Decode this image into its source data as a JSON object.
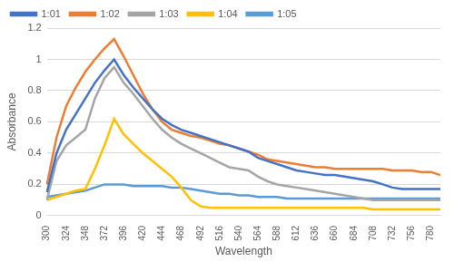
{
  "chart_data": {
    "type": "line",
    "x_label": "Wavelength",
    "y_label": "Absorbance",
    "categories": [
      300,
      null,
      324,
      null,
      348,
      null,
      372,
      null,
      396,
      null,
      420,
      null,
      444,
      null,
      468,
      null,
      492,
      null,
      516,
      null,
      540,
      null,
      564,
      null,
      588,
      null,
      612,
      null,
      636,
      null,
      660,
      null,
      684,
      null,
      708,
      null,
      732,
      null,
      756,
      null,
      780,
      null
    ],
    "series": [
      {
        "name": "1:01",
        "color": "#4472c4",
        "values": [
          0.15,
          0.4,
          0.55,
          0.65,
          0.75,
          0.85,
          0.93,
          1.0,
          0.9,
          0.82,
          0.75,
          0.68,
          0.62,
          0.58,
          0.55,
          0.53,
          0.51,
          0.49,
          0.47,
          0.45,
          0.43,
          0.41,
          0.37,
          0.35,
          0.33,
          0.31,
          0.29,
          0.28,
          0.27,
          0.26,
          0.26,
          0.25,
          0.24,
          0.23,
          0.22,
          0.2,
          0.18,
          0.17,
          0.17,
          0.17,
          0.17,
          0.17
        ]
      },
      {
        "name": "1:02",
        "color": "#ed7d31",
        "values": [
          0.2,
          0.5,
          0.7,
          0.82,
          0.92,
          1.0,
          1.07,
          1.13,
          1.02,
          0.9,
          0.78,
          0.68,
          0.6,
          0.55,
          0.53,
          0.51,
          0.5,
          0.48,
          0.46,
          0.45,
          0.43,
          0.41,
          0.39,
          0.36,
          0.35,
          0.34,
          0.33,
          0.32,
          0.31,
          0.31,
          0.3,
          0.3,
          0.3,
          0.3,
          0.3,
          0.3,
          0.29,
          0.29,
          0.29,
          0.28,
          0.28,
          0.26
        ]
      },
      {
        "name": "1:03",
        "color": "#a5a5a5",
        "values": [
          0.1,
          0.35,
          0.45,
          0.5,
          0.55,
          0.75,
          0.88,
          0.95,
          0.85,
          0.78,
          0.7,
          0.62,
          0.55,
          0.5,
          0.46,
          0.43,
          0.4,
          0.37,
          0.34,
          0.31,
          0.3,
          0.29,
          0.25,
          0.22,
          0.2,
          0.19,
          0.18,
          0.17,
          0.16,
          0.15,
          0.14,
          0.13,
          0.12,
          0.11,
          0.1,
          0.1,
          0.1,
          0.1,
          0.1,
          0.1,
          0.1,
          0.1
        ]
      },
      {
        "name": "1:04",
        "color": "#ffc000",
        "values": [
          0.1,
          0.12,
          0.14,
          0.16,
          0.17,
          0.3,
          0.45,
          0.62,
          0.52,
          0.46,
          0.4,
          0.35,
          0.3,
          0.25,
          0.18,
          0.1,
          0.06,
          0.05,
          0.05,
          0.05,
          0.05,
          0.05,
          0.05,
          0.05,
          0.05,
          0.05,
          0.05,
          0.05,
          0.05,
          0.05,
          0.05,
          0.05,
          0.05,
          0.05,
          0.04,
          0.04,
          0.04,
          0.04,
          0.04,
          0.04,
          0.04,
          0.04
        ]
      },
      {
        "name": "1:05",
        "color": "#5b9bd5",
        "values": [
          0.12,
          0.13,
          0.14,
          0.15,
          0.16,
          0.18,
          0.2,
          0.2,
          0.2,
          0.19,
          0.19,
          0.19,
          0.19,
          0.18,
          0.18,
          0.17,
          0.16,
          0.15,
          0.14,
          0.14,
          0.13,
          0.13,
          0.12,
          0.12,
          0.12,
          0.11,
          0.11,
          0.11,
          0.11,
          0.11,
          0.11,
          0.11,
          0.11,
          0.11,
          0.11,
          0.11,
          0.11,
          0.11,
          0.11,
          0.11,
          0.11,
          0.11
        ]
      }
    ],
    "ylim": [
      0,
      1.2
    ],
    "yticks": [
      0,
      0.2,
      0.4,
      0.6,
      0.8,
      1,
      1.2
    ],
    "grid": true,
    "legend": "top"
  }
}
